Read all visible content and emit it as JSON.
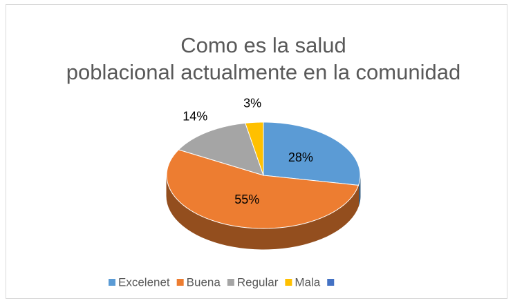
{
  "chart_data": {
    "type": "pie",
    "title": "Como es la salud poblacional actualmente en la comunidad",
    "categories": [
      "Excelenet",
      "Buena",
      "Regular",
      "Mala",
      null
    ],
    "values": [
      28,
      55,
      14,
      3,
      null
    ],
    "value_labels": [
      "28%",
      "55%",
      "14%",
      "3%",
      null
    ],
    "colors": [
      "#5b9bd5",
      "#ed7d31",
      "#a5a5a5",
      "#ffc000",
      "#4472c4"
    ],
    "legend": "bottom"
  }
}
